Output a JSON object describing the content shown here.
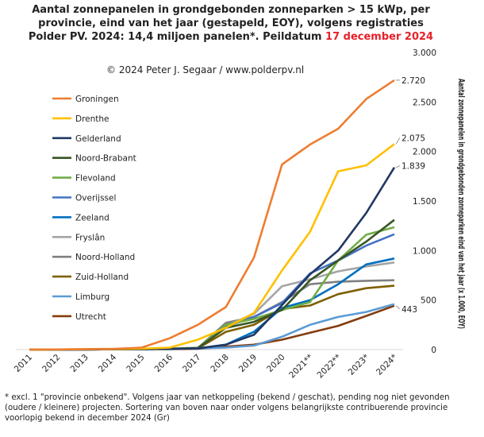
{
  "title": {
    "line1": "Aantal zonnepanelen in grondgebonden zonneparken > 15 kWp, per",
    "line2": "provincie, eind van het jaar (gestapeld, EOY), volgens registraties",
    "line3_prefix": "Polder PV. 2024: 14,4 miljoen panelen*. Peildatum",
    "line3_date": "17 december 2024",
    "date_color": "#e8202a"
  },
  "copyright": "© 2024 Peter J. Segaar / www.polderpv.nl",
  "footnote": "* excl. 1 \"provincie onbekend\". Volgens jaar van netkoppeling (bekend / geschat), pending nog niet gevonden (oudere / kleinere) projecten. Sortering van boven naar onder volgens belangrijkste contribuerende provincie voorlopig bekend in december 2024 (Gr)",
  "chart_data": {
    "type": "line",
    "ylabel": "Aantal zonnepanelen in grondgebonden zonneparken eind van het jaar (x 1.000, EOY)",
    "ylim": [
      0,
      3000
    ],
    "y_tick_labels": [
      "0",
      "500",
      "1.000",
      "1.500",
      "2.000",
      "2.500",
      "3.000"
    ],
    "y_tick_values": [
      0,
      500,
      1000,
      1500,
      2000,
      2500,
      3000
    ],
    "grid": false,
    "legend_position": "top-left",
    "categories": [
      "2011",
      "2012",
      "2013",
      "2014",
      "2015",
      "2016",
      "2017",
      "2018",
      "2019",
      "2020",
      "2021**",
      "2022**",
      "2023*",
      "2024*"
    ],
    "series": [
      {
        "name": "Groningen",
        "color": "#ed7d31",
        "values": [
          0,
          2,
          5,
          8,
          20,
          115,
          250,
          430,
          930,
          1870,
          2070,
          2230,
          2530,
          2720
        ]
      },
      {
        "name": "Drenthe",
        "color": "#ffc000",
        "values": [
          0,
          2,
          4,
          6,
          10,
          20,
          100,
          220,
          370,
          800,
          1190,
          1800,
          1860,
          2075
        ]
      },
      {
        "name": "Gelderland",
        "color": "#203864",
        "values": [
          0,
          1,
          2,
          3,
          5,
          8,
          12,
          50,
          150,
          450,
          760,
          1000,
          1380,
          1839
        ]
      },
      {
        "name": "Noord-Brabant",
        "color": "#375623",
        "values": [
          0,
          1,
          2,
          3,
          5,
          8,
          15,
          220,
          280,
          400,
          700,
          900,
          1090,
          1310
        ]
      },
      {
        "name": "Flevoland",
        "color": "#70ad47",
        "values": [
          0,
          1,
          2,
          3,
          5,
          10,
          15,
          250,
          310,
          400,
          480,
          900,
          1160,
          1235
        ]
      },
      {
        "name": "Overijssel",
        "color": "#4472c4",
        "values": [
          0,
          1,
          2,
          3,
          5,
          8,
          12,
          230,
          330,
          470,
          770,
          900,
          1050,
          1165
        ]
      },
      {
        "name": "Zeeland",
        "color": "#0070c0",
        "values": [
          0,
          1,
          2,
          3,
          5,
          8,
          12,
          50,
          180,
          420,
          500,
          660,
          860,
          920
        ]
      },
      {
        "name": "Fryslân",
        "color": "#a5a5a5",
        "values": [
          0,
          1,
          2,
          3,
          5,
          10,
          20,
          240,
          360,
          640,
          710,
          790,
          840,
          880
        ]
      },
      {
        "name": "Noord-Holland",
        "color": "#808080",
        "values": [
          0,
          1,
          2,
          3,
          5,
          8,
          15,
          270,
          330,
          480,
          660,
          685,
          695,
          700
        ]
      },
      {
        "name": "Zuid-Holland",
        "color": "#7f6000",
        "values": [
          0,
          1,
          2,
          3,
          5,
          8,
          12,
          180,
          250,
          410,
          445,
          560,
          620,
          645
        ]
      },
      {
        "name": "Limburg",
        "color": "#5b9bd5",
        "values": [
          0,
          1,
          2,
          3,
          5,
          8,
          12,
          20,
          40,
          130,
          250,
          330,
          380,
          460
        ]
      },
      {
        "name": "Utrecht",
        "color": "#843c0c",
        "values": [
          0,
          1,
          2,
          3,
          4,
          5,
          8,
          30,
          50,
          100,
          170,
          240,
          340,
          443
        ]
      }
    ],
    "end_labels": [
      {
        "series": "Groningen",
        "text": "2.720"
      },
      {
        "series": "Drenthe",
        "text": "2.075"
      },
      {
        "series": "Gelderland",
        "text": "1.839"
      },
      {
        "series": "Utrecht",
        "text": "443"
      }
    ]
  }
}
